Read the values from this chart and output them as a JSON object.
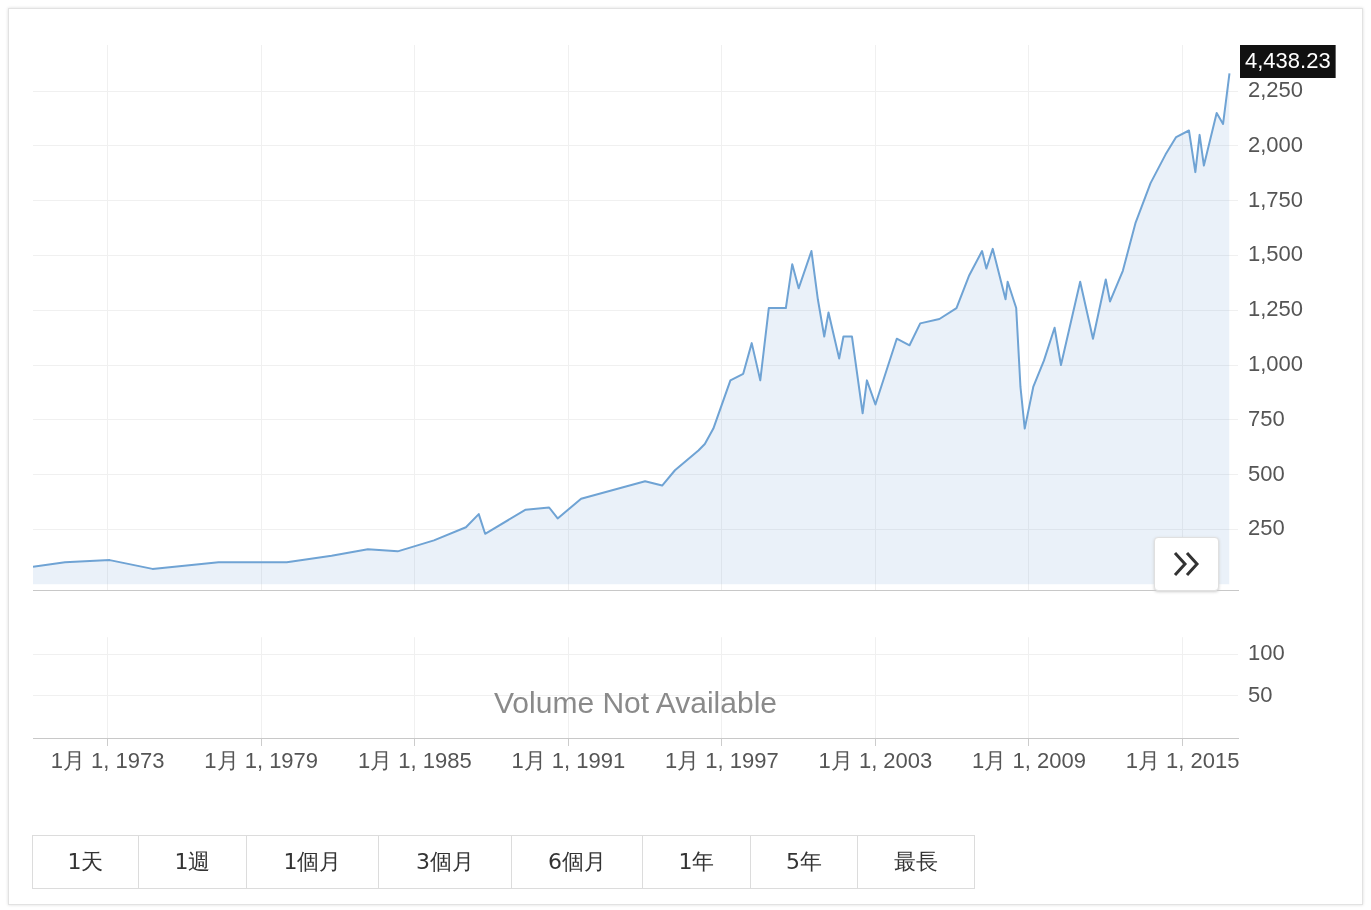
{
  "chart_data": [
    {
      "type": "area",
      "tick_labels": "y",
      "grid": true,
      "xlim": [
        "1970-02",
        "2017-03"
      ],
      "xticks": [
        {
          "value": "1973-01-01",
          "label": null
        },
        {
          "value": "1979-01-01",
          "label": null
        },
        {
          "value": "1985-01-01",
          "label": null
        },
        {
          "value": "1991-01-01",
          "label": null
        },
        {
          "value": "1997-01-01",
          "label": null
        },
        {
          "value": "2003-01-01",
          "label": null
        },
        {
          "value": "2009-01-01",
          "label": null
        },
        {
          "value": "2015-01-01",
          "label": null
        }
      ],
      "ylim": [
        -30,
        2460
      ],
      "yticks": [
        250,
        500,
        750,
        {
          "value": 1000,
          "label": "1,000"
        },
        {
          "value": 1250,
          "label": "1,250"
        },
        {
          "value": 1500,
          "label": "1,500"
        },
        {
          "value": 1750,
          "label": "1,750"
        },
        {
          "value": 2000,
          "label": "2,000"
        },
        {
          "value": 2250,
          "label": "2,250"
        }
      ],
      "annotations": [
        "4,438.23"
      ],
      "x": [
        "1970-02",
        "1971-05",
        "1973-02",
        "1974-10",
        "1977-05",
        "1980-01",
        "1981-10",
        "1983-03",
        "1984-05",
        "1985-10",
        "1987-01",
        "1987-07",
        "1987-10",
        "1989-05",
        "1990-04",
        "1990-08",
        "1991-07",
        "1994-01",
        "1994-09",
        "1995-03",
        "1996-02",
        "1996-05",
        "1996-09",
        "1997-05",
        "1997-11",
        "1998-03",
        "1998-07",
        "1998-11",
        "1999-07",
        "1999-10",
        "2000-01",
        "2000-07",
        "2000-10",
        "2001-01",
        "2001-03",
        "2001-08",
        "2001-10",
        "2002-02",
        "2002-07",
        "2002-09",
        "2003-01",
        "2003-11",
        "2004-05",
        "2004-10",
        "2005-07",
        "2006-03",
        "2006-09",
        "2007-03",
        "2007-05",
        "2007-08",
        "2008-02",
        "2008-03",
        "2008-07",
        "2008-09",
        "2008-11",
        "2009-03",
        "2009-08",
        "2010-01",
        "2010-04",
        "2011-01",
        "2011-07",
        "2012-01",
        "2012-03",
        "2012-09",
        "2013-03",
        "2013-10",
        "2014-05",
        "2014-10",
        "2015-04",
        "2015-07",
        "2015-09",
        "2015-11",
        "2016-05",
        "2016-08",
        "2016-11"
      ],
      "series": [
        {
          "color": "#6fa3d4",
          "values": [
            80,
            100,
            110,
            70,
            100,
            100,
            130,
            160,
            150,
            200,
            260,
            320,
            230,
            340,
            350,
            300,
            390,
            470,
            450,
            520,
            610,
            640,
            710,
            930,
            960,
            1100,
            930,
            1260,
            1260,
            1460,
            1350,
            1520,
            1300,
            1130,
            1240,
            1030,
            1130,
            1130,
            780,
            930,
            820,
            1120,
            1090,
            1190,
            1210,
            1260,
            1410,
            1520,
            1440,
            1530,
            1300,
            1380,
            1260,
            900,
            710,
            900,
            1020,
            1170,
            1000,
            1380,
            1120,
            1390,
            1290,
            1430,
            1650,
            1830,
            1960,
            2040,
            2070,
            1880,
            2050,
            1910,
            2150,
            2100,
            2330
          ]
        }
      ]
    },
    {
      "type": "line",
      "grid": true,
      "xlim": [
        "1970-02",
        "2017-03"
      ],
      "xticks": [
        {
          "value": "1973-01-01",
          "label": "1月 1, 1973"
        },
        {
          "value": "1979-01-01",
          "label": "1月 1, 1979"
        },
        {
          "value": "1985-01-01",
          "label": "1月 1, 1985"
        },
        {
          "value": "1991-01-01",
          "label": "1月 1, 1991"
        },
        {
          "value": "1997-01-01",
          "label": "1月 1, 1997"
        },
        {
          "value": "2003-01-01",
          "label": "1月 1, 2003"
        },
        {
          "value": "2009-01-01",
          "label": "1月 1, 2009"
        },
        {
          "value": "2015-01-01",
          "label": "1月 1, 2015"
        }
      ],
      "ylim": [
        0,
        120
      ],
      "yticks": [
        100,
        50
      ],
      "annotations": [
        "Volume Not Available"
      ]
    },
    {
      "type": "other",
      "annotations": [
        "1天",
        "1週",
        "1個月",
        "3個月",
        "6個月",
        "1年",
        "5年",
        "最長"
      ]
    }
  ]
}
